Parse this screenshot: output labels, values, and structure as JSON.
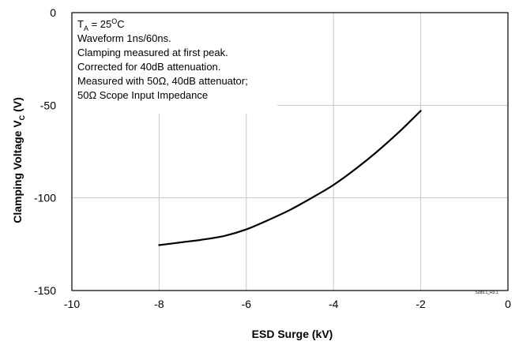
{
  "chart_data": {
    "type": "line",
    "xlabel": "ESD Surge (kV)",
    "ylabel": {
      "main": "Clamping Voltage V",
      "sub": "C",
      "unit": " (V)"
    },
    "xlim": [
      -10,
      0
    ],
    "ylim": [
      -150,
      0
    ],
    "x_ticks": [
      "-10",
      "-8",
      "-6",
      "-4",
      "-2",
      "0"
    ],
    "y_ticks": [
      "0",
      "-50",
      "-100",
      "-150"
    ],
    "grid": true,
    "series": [
      {
        "x": [
          -8,
          -7.5,
          -7,
          -6.5,
          -6,
          -5.5,
          -5,
          -4.5,
          -4,
          -3.5,
          -3,
          -2.5,
          -2
        ],
        "y": [
          -125.5,
          -124,
          -122.5,
          -120.5,
          -117,
          -112,
          -106.5,
          -100,
          -93,
          -84.5,
          -75,
          -64.5,
          -53
        ]
      }
    ],
    "annotations": {
      "line1_prefix": "T",
      "line1_sub": "A",
      "line1_mid": " = 25",
      "line1_sup": "O",
      "line1_suffix": "C",
      "line2": "Waveform 1ns/60ns.",
      "line3": "Clamping measured at first peak.",
      "line4": "Corrected for 40dB attenuation.",
      "line5": "Measured with 50Ω, 40dB attenuator;",
      "line6": "50Ω Scope Input Impedance"
    },
    "figure_id": "5289.1_R3.1"
  },
  "colors": {
    "line": "#000000",
    "grid": "#c8c8c8",
    "axis": "#000000"
  }
}
